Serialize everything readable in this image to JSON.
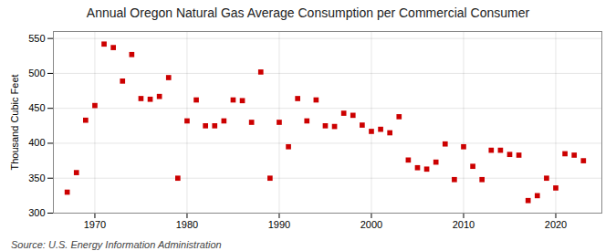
{
  "chart_data": {
    "type": "scatter",
    "title": "Annual Oregon Natural Gas Average Consumption per Commercial Consumer",
    "ylabel": "Thousand Cubic Feet",
    "caption": "Source: U.S. Energy Information Administration",
    "x": [
      1967,
      1968,
      1969,
      1970,
      1971,
      1972,
      1973,
      1974,
      1975,
      1976,
      1977,
      1978,
      1979,
      1980,
      1981,
      1982,
      1983,
      1984,
      1985,
      1986,
      1987,
      1988,
      1989,
      1990,
      1991,
      1992,
      1993,
      1994,
      1995,
      1996,
      1997,
      1998,
      1999,
      2000,
      2001,
      2002,
      2003,
      2004,
      2005,
      2006,
      2007,
      2008,
      2009,
      2010,
      2011,
      2012,
      2013,
      2014,
      2015,
      2016,
      2017,
      2018,
      2019,
      2020,
      2021,
      2022,
      2023
    ],
    "values": [
      330,
      358,
      433,
      454,
      542,
      537,
      489,
      527,
      464,
      463,
      467,
      494,
      350,
      432,
      462,
      425,
      425,
      432,
      462,
      461,
      430,
      502,
      350,
      430,
      395,
      464,
      432,
      462,
      425,
      424,
      443,
      440,
      426,
      417,
      420,
      415,
      438,
      376,
      365,
      363,
      373,
      399,
      348,
      395,
      367,
      348,
      390,
      390,
      384,
      383,
      318,
      325,
      350,
      336,
      385,
      383,
      375
    ],
    "color": "#cc0000",
    "marker": "square",
    "xlim": [
      1965.5,
      2025
    ],
    "xticks": [
      1970,
      1980,
      1990,
      2000,
      2010,
      2020
    ],
    "ylim": [
      300,
      560
    ],
    "yticks": [
      300,
      350,
      400,
      450,
      500,
      550
    ],
    "grid": true
  }
}
